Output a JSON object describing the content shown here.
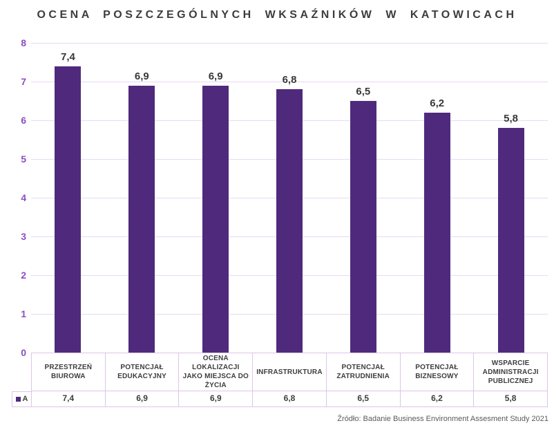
{
  "title": "OCENA POSZCZEGÓLNYCH WKSAŹNIKÓW W KATOWICACH",
  "source": "Źródło: Badanie Business Environment Assesment Study 2021",
  "legend": {
    "series_label": "A"
  },
  "colors": {
    "bar": "#4f2a7c",
    "axis_label": "#8a50c0",
    "gridline": "#e8d9f3",
    "table_border": "#dcc4ea",
    "title": "#3c3c3c",
    "value_label": "#383838",
    "source": "#5a5a5a"
  },
  "y_axis": {
    "min": 0,
    "max": 8,
    "step": 1,
    "ticks": [
      "0",
      "1",
      "2",
      "3",
      "4",
      "5",
      "6",
      "7",
      "8"
    ]
  },
  "chart_data": {
    "type": "bar",
    "title": "OCENA POSZCZEGÓLNYCH WKSAŹNIKÓW W KATOWICACH",
    "categories": [
      "PRZESTRZEŃ BIUROWA",
      "POTENCJAŁ EDUKACYJNY",
      "OCENA LOKALIZACJI JAKO MIEJSCA DO ŻYCIA",
      "INFRASTRUKTURA",
      "POTENCJAŁ ZATRUDNIENIA",
      "POTENCJAŁ BIZNESOWY",
      "WSPARCIE ADMINISTRACJI PUBLICZNEJ"
    ],
    "series": [
      {
        "name": "A",
        "values": [
          7.4,
          6.9,
          6.9,
          6.8,
          6.5,
          6.2,
          5.8
        ]
      }
    ],
    "value_labels": [
      "7,4",
      "6,9",
      "6,9",
      "6,8",
      "6,5",
      "6,2",
      "5,8"
    ],
    "xlabel": "",
    "ylabel": "",
    "ylim": [
      0,
      8
    ],
    "grid": true,
    "legend_position": "bottom-table"
  }
}
